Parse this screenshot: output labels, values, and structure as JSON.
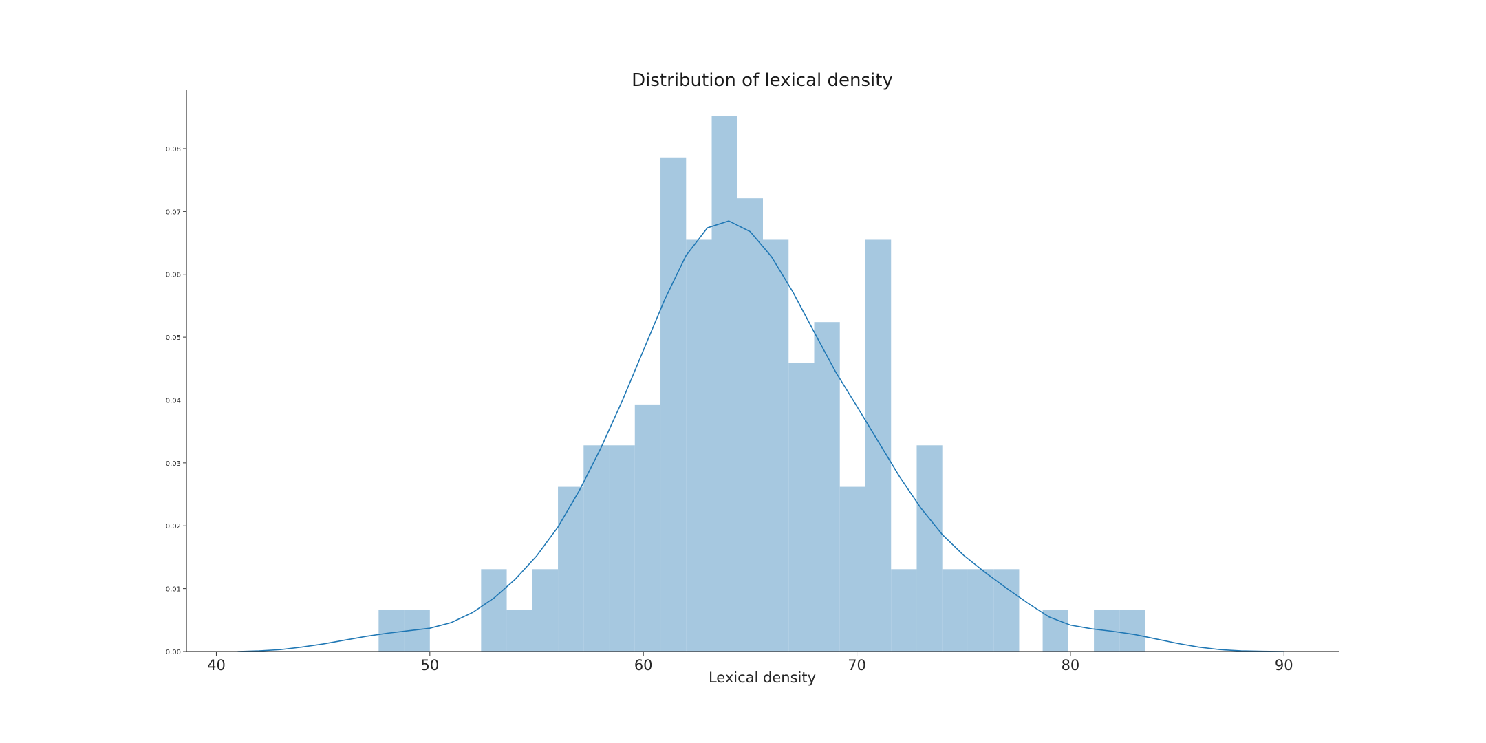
{
  "chart_data": {
    "type": "bar",
    "title": "Distribution of lexical density",
    "xlabel": "Lexical density",
    "ylabel": "",
    "xlim": [
      38.6,
      92.6
    ],
    "ylim": [
      0,
      0.0893
    ],
    "x_ticks": [
      40,
      50,
      60,
      70,
      80,
      90
    ],
    "y_ticks": [
      "0.00",
      "0.01",
      "0.02",
      "0.03",
      "0.04",
      "0.05",
      "0.06",
      "0.07",
      "0.08"
    ],
    "grid": false,
    "bar_color": "#a6c8e0",
    "line_color": "#1f77b4",
    "series": [
      {
        "type": "histogram",
        "bins": [
          {
            "x0": 47.6,
            "x1": 48.8,
            "density": 0.0066
          },
          {
            "x0": 48.8,
            "x1": 50.0,
            "density": 0.0066
          },
          {
            "x0": 52.4,
            "x1": 53.6,
            "density": 0.0131
          },
          {
            "x0": 53.6,
            "x1": 54.8,
            "density": 0.0066
          },
          {
            "x0": 54.8,
            "x1": 56.0,
            "density": 0.0131
          },
          {
            "x0": 56.0,
            "x1": 57.2,
            "density": 0.0262
          },
          {
            "x0": 57.2,
            "x1": 58.4,
            "density": 0.0328
          },
          {
            "x0": 58.4,
            "x1": 59.6,
            "density": 0.0328
          },
          {
            "x0": 59.6,
            "x1": 60.8,
            "density": 0.0393
          },
          {
            "x0": 60.8,
            "x1": 62.0,
            "density": 0.0786
          },
          {
            "x0": 62.0,
            "x1": 63.2,
            "density": 0.0655
          },
          {
            "x0": 63.2,
            "x1": 64.4,
            "density": 0.0852
          },
          {
            "x0": 64.4,
            "x1": 65.6,
            "density": 0.0721
          },
          {
            "x0": 65.6,
            "x1": 66.8,
            "density": 0.0655
          },
          {
            "x0": 66.8,
            "x1": 68.0,
            "density": 0.0459
          },
          {
            "x0": 68.0,
            "x1": 69.2,
            "density": 0.0524
          },
          {
            "x0": 69.2,
            "x1": 70.4,
            "density": 0.0262
          },
          {
            "x0": 70.4,
            "x1": 71.6,
            "density": 0.0655
          },
          {
            "x0": 71.6,
            "x1": 72.8,
            "density": 0.0131
          },
          {
            "x0": 72.8,
            "x1": 74.0,
            "density": 0.0328
          },
          {
            "x0": 74.0,
            "x1": 75.2,
            "density": 0.0131
          },
          {
            "x0": 75.2,
            "x1": 76.4,
            "density": 0.0131
          },
          {
            "x0": 76.4,
            "x1": 77.6,
            "density": 0.0131
          },
          {
            "x0": 78.7,
            "x1": 79.9,
            "density": 0.0066
          },
          {
            "x0": 81.1,
            "x1": 82.3,
            "density": 0.0066
          },
          {
            "x0": 82.3,
            "x1": 83.5,
            "density": 0.0066
          }
        ]
      },
      {
        "type": "kde",
        "points": [
          [
            41,
            0.0
          ],
          [
            42,
            0.0001
          ],
          [
            43,
            0.0003
          ],
          [
            44,
            0.0007
          ],
          [
            45,
            0.0012
          ],
          [
            46,
            0.0018
          ],
          [
            47,
            0.0024
          ],
          [
            48,
            0.0029
          ],
          [
            49,
            0.0033
          ],
          [
            50,
            0.0037
          ],
          [
            51,
            0.0046
          ],
          [
            52,
            0.0062
          ],
          [
            53,
            0.0085
          ],
          [
            54,
            0.0115
          ],
          [
            55,
            0.0152
          ],
          [
            56,
            0.0198
          ],
          [
            57,
            0.0256
          ],
          [
            58,
            0.0323
          ],
          [
            59,
            0.0398
          ],
          [
            60,
            0.0479
          ],
          [
            61,
            0.056
          ],
          [
            62,
            0.063
          ],
          [
            63,
            0.0674
          ],
          [
            64,
            0.0685
          ],
          [
            65,
            0.0668
          ],
          [
            66,
            0.0628
          ],
          [
            67,
            0.0572
          ],
          [
            68,
            0.0508
          ],
          [
            69,
            0.0445
          ],
          [
            70,
            0.039
          ],
          [
            71,
            0.0334
          ],
          [
            72,
            0.0278
          ],
          [
            73,
            0.0228
          ],
          [
            74,
            0.0186
          ],
          [
            75,
            0.0153
          ],
          [
            76,
            0.0126
          ],
          [
            77,
            0.0101
          ],
          [
            78,
            0.0077
          ],
          [
            79,
            0.0055
          ],
          [
            80,
            0.0042
          ],
          [
            81,
            0.0036
          ],
          [
            82,
            0.0032
          ],
          [
            83,
            0.0027
          ],
          [
            84,
            0.002
          ],
          [
            85,
            0.0013
          ],
          [
            86,
            0.0007
          ],
          [
            87,
            0.0003
          ],
          [
            88,
            0.0001
          ],
          [
            89,
            3e-05
          ],
          [
            90,
            0.0
          ]
        ]
      }
    ]
  }
}
